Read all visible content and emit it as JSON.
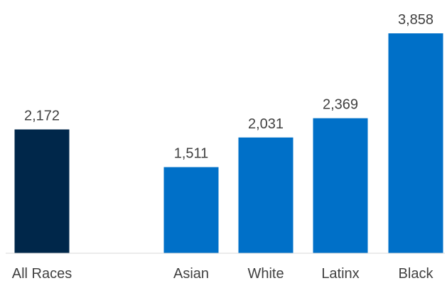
{
  "chart_data": {
    "type": "bar",
    "categories": [
      "All Races",
      "Asian",
      "White",
      "Latinx",
      "Black"
    ],
    "values": [
      2172,
      1511,
      2031,
      2369,
      3858
    ],
    "value_labels": [
      "2,172",
      "1,511",
      "2,031",
      "2,369",
      "3,858"
    ],
    "colors": [
      "#00274A",
      "#0070C8",
      "#0070C8",
      "#0070C8",
      "#0070C8"
    ],
    "title": "",
    "xlabel": "",
    "ylabel": "",
    "ylim": [
      0,
      3858
    ],
    "grid": false,
    "legend": "none",
    "baseline_color": "#d9d9d9",
    "label_color": "#404040"
  }
}
